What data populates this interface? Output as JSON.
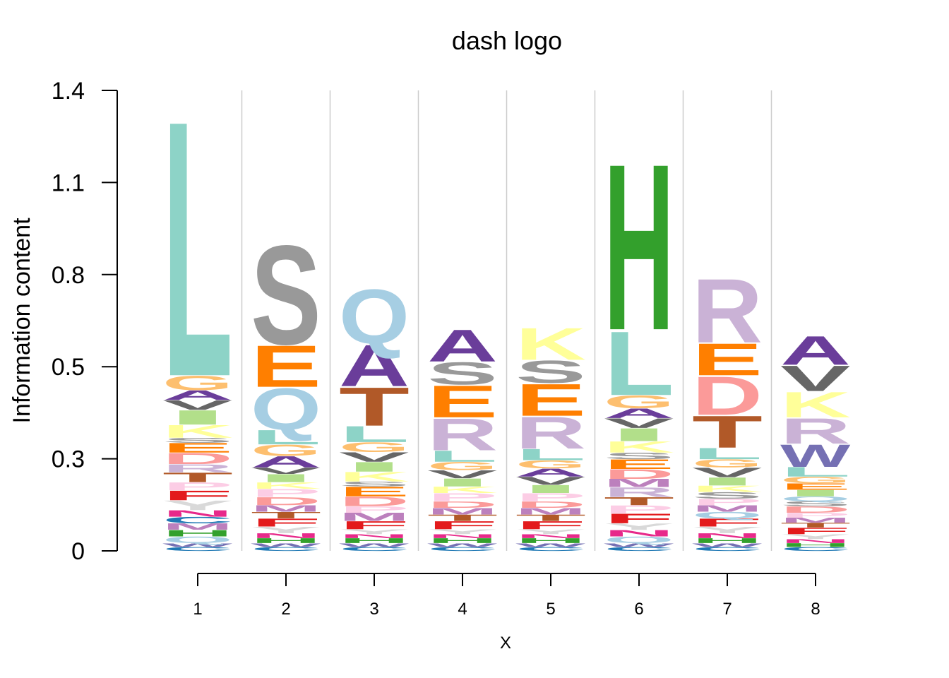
{
  "chart_data": {
    "type": "sequence-logo",
    "title": "dash logo",
    "xlabel": "X",
    "ylabel": "Information content",
    "ylim": [
      0,
      1.4
    ],
    "yticks": [
      "0",
      "0.3",
      "0.5",
      "0.8",
      "1.1",
      "1.4"
    ],
    "ytick_values": [
      0,
      0.28,
      0.56,
      0.84,
      1.12,
      1.4
    ],
    "positions": [
      "1",
      "2",
      "3",
      "4",
      "5",
      "6",
      "7",
      "8"
    ],
    "colors": {
      "A": "#6a3d9a",
      "C": "#1f78b4",
      "D": "#fb9a99",
      "E": "#ff7f00",
      "F": "#e31a1c",
      "G": "#fdbf6f",
      "H": "#33a02c",
      "I": "#b2df8a",
      "K": "#ffff99",
      "L": "#8dd3c7",
      "M": "#bc80bd",
      "N": "#e7298a",
      "P": "#fccde5",
      "Q": "#a6cee3",
      "R": "#cab2d6",
      "S": "#999999",
      "T": "#b15928",
      "V": "#666666",
      "W": "#7570b3",
      "Y": "#d9d9d9"
    },
    "columns": [
      {
        "position": "1",
        "letters": [
          {
            "letter": "C",
            "bits": 0.012
          },
          {
            "letter": "W",
            "bits": 0.012
          },
          {
            "letter": "Q",
            "bits": 0.02
          },
          {
            "letter": "H",
            "bits": 0.02
          },
          {
            "letter": "M",
            "bits": 0.02
          },
          {
            "letter": "C",
            "bits": 0.02
          },
          {
            "letter": "N",
            "bits": 0.02
          },
          {
            "letter": "Y",
            "bits": 0.03
          },
          {
            "letter": "F",
            "bits": 0.03
          },
          {
            "letter": "P",
            "bits": 0.025
          },
          {
            "letter": "T",
            "bits": 0.03
          },
          {
            "letter": "R",
            "bits": 0.025
          },
          {
            "letter": "D",
            "bits": 0.035
          },
          {
            "letter": "E",
            "bits": 0.03
          },
          {
            "letter": "S",
            "bits": 0.015
          },
          {
            "letter": "K",
            "bits": 0.04
          },
          {
            "letter": "I",
            "bits": 0.045
          },
          {
            "letter": "V",
            "bits": 0.03
          },
          {
            "letter": "A",
            "bits": 0.03
          },
          {
            "letter": "G",
            "bits": 0.045
          },
          {
            "letter": "L",
            "bits": 0.8
          }
        ]
      },
      {
        "position": "2",
        "letters": [
          {
            "letter": "C",
            "bits": 0.012
          },
          {
            "letter": "W",
            "bits": 0.012
          },
          {
            "letter": "H",
            "bits": 0.015
          },
          {
            "letter": "N",
            "bits": 0.015
          },
          {
            "letter": "Y",
            "bits": 0.02
          },
          {
            "letter": "F",
            "bits": 0.025
          },
          {
            "letter": "T",
            "bits": 0.02
          },
          {
            "letter": "M",
            "bits": 0.02
          },
          {
            "letter": "D",
            "bits": 0.025
          },
          {
            "letter": "P",
            "bits": 0.025
          },
          {
            "letter": "K",
            "bits": 0.02
          },
          {
            "letter": "I",
            "bits": 0.025
          },
          {
            "letter": "V",
            "bits": 0.02
          },
          {
            "letter": "A",
            "bits": 0.035
          },
          {
            "letter": "G",
            "bits": 0.035
          },
          {
            "letter": "L",
            "bits": 0.045
          },
          {
            "letter": "Q",
            "bits": 0.13
          },
          {
            "letter": "E",
            "bits": 0.13
          },
          {
            "letter": "S",
            "bits": 0.31
          }
        ]
      },
      {
        "position": "3",
        "letters": [
          {
            "letter": "C",
            "bits": 0.012
          },
          {
            "letter": "W",
            "bits": 0.012
          },
          {
            "letter": "H",
            "bits": 0.015
          },
          {
            "letter": "N",
            "bits": 0.012
          },
          {
            "letter": "Y",
            "bits": 0.015
          },
          {
            "letter": "F",
            "bits": 0.025
          },
          {
            "letter": "M",
            "bits": 0.025
          },
          {
            "letter": "P",
            "bits": 0.02
          },
          {
            "letter": "D",
            "bits": 0.03
          },
          {
            "letter": "E",
            "bits": 0.03
          },
          {
            "letter": "S",
            "bits": 0.015
          },
          {
            "letter": "K",
            "bits": 0.03
          },
          {
            "letter": "I",
            "bits": 0.03
          },
          {
            "letter": "V",
            "bits": 0.03
          },
          {
            "letter": "G",
            "bits": 0.03
          },
          {
            "letter": "L",
            "bits": 0.05
          },
          {
            "letter": "T",
            "bits": 0.12
          },
          {
            "letter": "A",
            "bits": 0.13
          },
          {
            "letter": "Q",
            "bits": 0.17
          }
        ]
      },
      {
        "position": "4",
        "letters": [
          {
            "letter": "C",
            "bits": 0.012
          },
          {
            "letter": "W",
            "bits": 0.012
          },
          {
            "letter": "H",
            "bits": 0.015
          },
          {
            "letter": "N",
            "bits": 0.012
          },
          {
            "letter": "Y",
            "bits": 0.015
          },
          {
            "letter": "F",
            "bits": 0.025
          },
          {
            "letter": "T",
            "bits": 0.02
          },
          {
            "letter": "M",
            "bits": 0.02
          },
          {
            "letter": "D",
            "bits": 0.02
          },
          {
            "letter": "P",
            "bits": 0.025
          },
          {
            "letter": "K",
            "bits": 0.02
          },
          {
            "letter": "I",
            "bits": 0.025
          },
          {
            "letter": "V",
            "bits": 0.025
          },
          {
            "letter": "G",
            "bits": 0.025
          },
          {
            "letter": "L",
            "bits": 0.035
          },
          {
            "letter": "R",
            "bits": 0.1
          },
          {
            "letter": "E",
            "bits": 0.1
          },
          {
            "letter": "S",
            "bits": 0.07
          },
          {
            "letter": "A",
            "bits": 0.1
          }
        ]
      },
      {
        "position": "5",
        "letters": [
          {
            "letter": "C",
            "bits": 0.012
          },
          {
            "letter": "W",
            "bits": 0.012
          },
          {
            "letter": "H",
            "bits": 0.015
          },
          {
            "letter": "N",
            "bits": 0.012
          },
          {
            "letter": "Y",
            "bits": 0.015
          },
          {
            "letter": "F",
            "bits": 0.025
          },
          {
            "letter": "T",
            "bits": 0.02
          },
          {
            "letter": "M",
            "bits": 0.02
          },
          {
            "letter": "D",
            "bits": 0.02
          },
          {
            "letter": "P",
            "bits": 0.025
          },
          {
            "letter": "I",
            "bits": 0.025
          },
          {
            "letter": "V",
            "bits": 0.025
          },
          {
            "letter": "A",
            "bits": 0.025
          },
          {
            "letter": "G",
            "bits": 0.025
          },
          {
            "letter": "L",
            "bits": 0.035
          },
          {
            "letter": "R",
            "bits": 0.1
          },
          {
            "letter": "E",
            "bits": 0.1
          },
          {
            "letter": "S",
            "bits": 0.07
          },
          {
            "letter": "K",
            "bits": 0.1
          }
        ]
      },
      {
        "position": "6",
        "letters": [
          {
            "letter": "C",
            "bits": 0.012
          },
          {
            "letter": "W",
            "bits": 0.012
          },
          {
            "letter": "Q",
            "bits": 0.02
          },
          {
            "letter": "N",
            "bits": 0.02
          },
          {
            "letter": "Y",
            "bits": 0.02
          },
          {
            "letter": "F",
            "bits": 0.03
          },
          {
            "letter": "P",
            "bits": 0.025
          },
          {
            "letter": "T",
            "bits": 0.025
          },
          {
            "letter": "R",
            "bits": 0.03
          },
          {
            "letter": "M",
            "bits": 0.025
          },
          {
            "letter": "D",
            "bits": 0.03
          },
          {
            "letter": "E",
            "bits": 0.03
          },
          {
            "letter": "S",
            "bits": 0.02
          },
          {
            "letter": "K",
            "bits": 0.035
          },
          {
            "letter": "I",
            "bits": 0.04
          },
          {
            "letter": "V",
            "bits": 0.03
          },
          {
            "letter": "A",
            "bits": 0.03
          },
          {
            "letter": "G",
            "bits": 0.04
          },
          {
            "letter": "L",
            "bits": 0.2
          },
          {
            "letter": "H",
            "bits": 0.52
          }
        ]
      },
      {
        "position": "7",
        "letters": [
          {
            "letter": "C",
            "bits": 0.012
          },
          {
            "letter": "W",
            "bits": 0.012
          },
          {
            "letter": "H",
            "bits": 0.015
          },
          {
            "letter": "N",
            "bits": 0.015
          },
          {
            "letter": "Y",
            "bits": 0.02
          },
          {
            "letter": "F",
            "bits": 0.025
          },
          {
            "letter": "Q",
            "bits": 0.02
          },
          {
            "letter": "M",
            "bits": 0.02
          },
          {
            "letter": "P",
            "bits": 0.02
          },
          {
            "letter": "S",
            "bits": 0.02
          },
          {
            "letter": "K",
            "bits": 0.02
          },
          {
            "letter": "I",
            "bits": 0.025
          },
          {
            "letter": "V",
            "bits": 0.03
          },
          {
            "letter": "G",
            "bits": 0.025
          },
          {
            "letter": "L",
            "bits": 0.035
          },
          {
            "letter": "T",
            "bits": 0.1
          },
          {
            "letter": "D",
            "bits": 0.12
          },
          {
            "letter": "E",
            "bits": 0.1
          },
          {
            "letter": "R",
            "bits": 0.2
          }
        ]
      },
      {
        "position": "8",
        "letters": [
          {
            "letter": "C",
            "bits": 0.012
          },
          {
            "letter": "H",
            "bits": 0.012
          },
          {
            "letter": "N",
            "bits": 0.012
          },
          {
            "letter": "Y",
            "bits": 0.015
          },
          {
            "letter": "F",
            "bits": 0.02
          },
          {
            "letter": "T",
            "bits": 0.015
          },
          {
            "letter": "M",
            "bits": 0.015
          },
          {
            "letter": "P",
            "bits": 0.015
          },
          {
            "letter": "D",
            "bits": 0.02
          },
          {
            "letter": "S",
            "bits": 0.015
          },
          {
            "letter": "Q",
            "bits": 0.015
          },
          {
            "letter": "I",
            "bits": 0.02
          },
          {
            "letter": "E",
            "bits": 0.02
          },
          {
            "letter": "G",
            "bits": 0.02
          },
          {
            "letter": "L",
            "bits": 0.03
          },
          {
            "letter": "W",
            "bits": 0.07
          },
          {
            "letter": "R",
            "bits": 0.08
          },
          {
            "letter": "K",
            "bits": 0.08
          },
          {
            "letter": "V",
            "bits": 0.08
          },
          {
            "letter": "A",
            "bits": 0.09
          }
        ]
      }
    ]
  }
}
